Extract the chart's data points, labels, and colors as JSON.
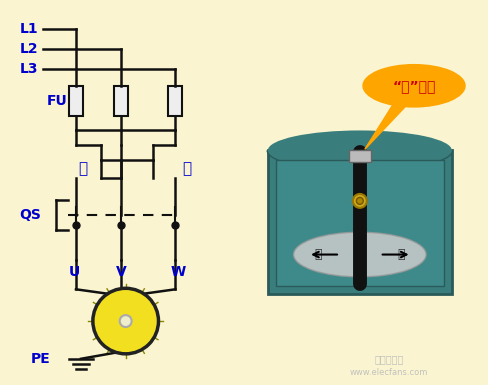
{
  "bg_color": "#FAF5D0",
  "line_color": "#111111",
  "label_color": "#0000CC",
  "lw": 1.8,
  "L1_label": "L1",
  "L2_label": "L2",
  "L3_label": "L3",
  "FU_label": "FU",
  "shun_label": "顺",
  "dao_label": "倒",
  "QS_label": "QS",
  "U_label": "U",
  "V_label": "V",
  "W_label": "W",
  "PE_label": "PE",
  "callout_text": "“停”位置",
  "callout_color": "#FFA500",
  "callout_text_color": "#CC0000",
  "box_facecolor": "#3A7D7D",
  "box_edgecolor": "#2A5A5A",
  "watermark": "电子发烧友",
  "watermark2": "www.elecfans.com"
}
